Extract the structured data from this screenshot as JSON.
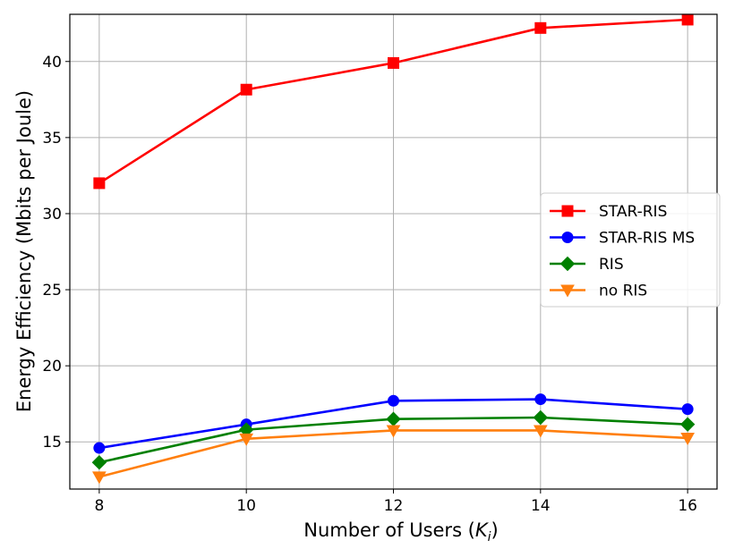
{
  "chart_data": {
    "type": "line",
    "title": "",
    "xlabel_main": "Number of Users (",
    "xlabel_symbol": "K",
    "xlabel_subscript": "i",
    "xlabel_close": ")",
    "ylabel": "Energy Efficiency (Mbits per Joule)",
    "x": [
      8,
      10,
      12,
      14,
      16
    ],
    "xticks": [
      "8",
      "10",
      "12",
      "14",
      "16"
    ],
    "yticks": [
      "15",
      "20",
      "25",
      "30",
      "35",
      "40"
    ],
    "ytick_values": [
      15,
      20,
      25,
      30,
      35,
      40
    ],
    "xlim": [
      7.6,
      16.4
    ],
    "ylim": [
      11.9,
      43.1
    ],
    "grid": true,
    "legend_position": "center-right",
    "series": [
      {
        "name": "STAR-RIS",
        "color": "#ff0000",
        "marker": "square",
        "values": [
          32.0,
          38.15,
          39.9,
          42.2,
          42.75
        ]
      },
      {
        "name": "STAR-RIS MS",
        "color": "#0000ff",
        "marker": "circle",
        "values": [
          14.6,
          16.15,
          17.7,
          17.8,
          17.15
        ]
      },
      {
        "name": "RIS",
        "color": "#008000",
        "marker": "diamond",
        "values": [
          13.65,
          15.8,
          16.5,
          16.6,
          16.15
        ]
      },
      {
        "name": "no RIS",
        "color": "#ff7f0e",
        "marker": "triangle-down",
        "values": [
          12.7,
          15.2,
          15.75,
          15.75,
          15.25
        ]
      }
    ]
  }
}
